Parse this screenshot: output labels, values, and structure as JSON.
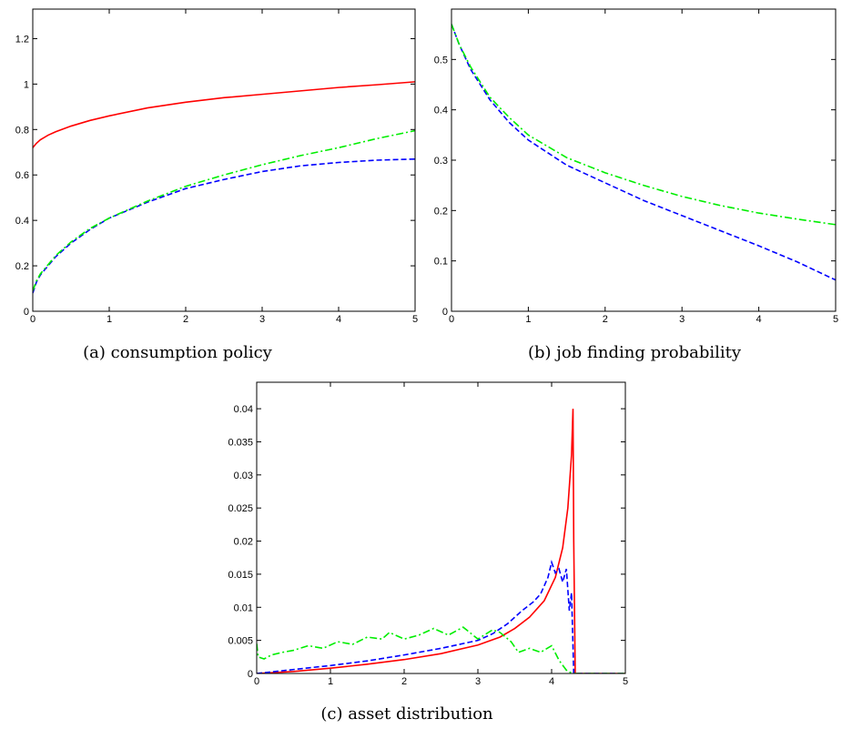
{
  "chart_data": [
    {
      "type": "line",
      "caption": "(a)  consumption policy",
      "xlim": [
        0,
        5
      ],
      "ylim": [
        0,
        1.33
      ],
      "xticks": [
        0,
        1,
        2,
        3,
        4,
        5
      ],
      "yticks": [
        0,
        0.2,
        0.4,
        0.6,
        0.8,
        1,
        1.2
      ],
      "xtick_labels": [
        "0",
        "1",
        "2",
        "3",
        "4",
        "5"
      ],
      "ytick_labels": [
        "0",
        "0.2",
        "0.4",
        "0.6",
        "0.8",
        "1",
        "1.2"
      ],
      "grid": false,
      "series": [
        {
          "color": "#ff0000",
          "style": "solid",
          "x": [
            0,
            0.05,
            0.1,
            0.2,
            0.3,
            0.5,
            0.75,
            1,
            1.5,
            2,
            2.5,
            3,
            3.5,
            4,
            4.5,
            5
          ],
          "y": [
            0.72,
            0.74,
            0.755,
            0.775,
            0.79,
            0.815,
            0.84,
            0.86,
            0.895,
            0.92,
            0.94,
            0.955,
            0.97,
            0.985,
            0.997,
            1.01
          ]
        },
        {
          "color": "#0000ff",
          "style": "dashed",
          "x": [
            0,
            0.05,
            0.1,
            0.2,
            0.3,
            0.5,
            0.75,
            1,
            1.5,
            2,
            2.5,
            3,
            3.5,
            4,
            4.5,
            5
          ],
          "y": [
            0.08,
            0.13,
            0.16,
            0.2,
            0.24,
            0.3,
            0.36,
            0.41,
            0.48,
            0.54,
            0.58,
            0.615,
            0.64,
            0.655,
            0.665,
            0.67
          ]
        },
        {
          "color": "#00ee00",
          "style": "dashdot",
          "x": [
            0,
            0.05,
            0.1,
            0.2,
            0.3,
            0.5,
            0.75,
            1,
            1.5,
            2,
            2.5,
            3,
            3.5,
            4,
            4.5,
            5
          ],
          "y": [
            0.09,
            0.135,
            0.165,
            0.205,
            0.245,
            0.305,
            0.365,
            0.41,
            0.485,
            0.55,
            0.6,
            0.645,
            0.685,
            0.72,
            0.76,
            0.795
          ]
        }
      ]
    },
    {
      "type": "line",
      "caption": "(b)  job finding probability",
      "xlim": [
        0,
        5
      ],
      "ylim": [
        0,
        0.6
      ],
      "xticks": [
        0,
        1,
        2,
        3,
        4,
        5
      ],
      "yticks": [
        0,
        0.1,
        0.2,
        0.3,
        0.4,
        0.5
      ],
      "xtick_labels": [
        "0",
        "1",
        "2",
        "3",
        "4",
        "5"
      ],
      "ytick_labels": [
        "0",
        "0.1",
        "0.2",
        "0.3",
        "0.4",
        "0.5"
      ],
      "grid": false,
      "series": [
        {
          "color": "#0000ff",
          "style": "dashed",
          "x": [
            0,
            0.1,
            0.25,
            0.5,
            0.75,
            1,
            1.5,
            2,
            2.5,
            3,
            3.5,
            4,
            4.5,
            5
          ],
          "y": [
            0.57,
            0.53,
            0.48,
            0.42,
            0.375,
            0.34,
            0.29,
            0.255,
            0.22,
            0.19,
            0.16,
            0.13,
            0.098,
            0.062
          ]
        },
        {
          "color": "#00ee00",
          "style": "dashdot",
          "x": [
            0,
            0.1,
            0.25,
            0.5,
            0.75,
            1,
            1.5,
            2,
            2.5,
            3,
            3.5,
            4,
            4.5,
            5
          ],
          "y": [
            0.57,
            0.53,
            0.485,
            0.425,
            0.385,
            0.35,
            0.305,
            0.275,
            0.25,
            0.228,
            0.21,
            0.195,
            0.183,
            0.172
          ]
        }
      ]
    },
    {
      "type": "line",
      "caption": "(c)  asset distribution",
      "xlim": [
        0,
        5
      ],
      "ylim": [
        0,
        0.044
      ],
      "xticks": [
        0,
        1,
        2,
        3,
        4,
        5
      ],
      "yticks": [
        0,
        0.005,
        0.01,
        0.015,
        0.02,
        0.025,
        0.03,
        0.035,
        0.04
      ],
      "xtick_labels": [
        "0",
        "1",
        "2",
        "3",
        "4",
        "5"
      ],
      "ytick_labels": [
        "0",
        "0.005",
        "0.01",
        "0.015",
        "0.02",
        "0.025",
        "0.03",
        "0.035",
        "0.04"
      ],
      "grid": false,
      "series": [
        {
          "color": "#ff0000",
          "style": "solid",
          "x": [
            0,
            0.5,
            1,
            1.5,
            2,
            2.5,
            3,
            3.3,
            3.5,
            3.7,
            3.9,
            4.05,
            4.15,
            4.22,
            4.27,
            4.29,
            4.3,
            4.32,
            5
          ],
          "y": [
            0,
            0.0003,
            0.0008,
            0.0014,
            0.0021,
            0.003,
            0.0043,
            0.0055,
            0.0068,
            0.0085,
            0.011,
            0.0145,
            0.019,
            0.025,
            0.033,
            0.04,
            0.02,
            0,
            0
          ]
        },
        {
          "color": "#0000ff",
          "style": "dashed",
          "x": [
            0,
            0.5,
            1,
            1.5,
            2,
            2.5,
            3,
            3.2,
            3.4,
            3.6,
            3.75,
            3.85,
            3.95,
            4.0,
            4.05,
            4.1,
            4.15,
            4.2,
            4.24,
            4.27,
            4.3,
            5
          ],
          "y": [
            0,
            0.0006,
            0.0012,
            0.0019,
            0.0028,
            0.0038,
            0.005,
            0.006,
            0.0075,
            0.0095,
            0.0108,
            0.012,
            0.0145,
            0.0168,
            0.0152,
            0.0158,
            0.0138,
            0.0158,
            0.0095,
            0.0122,
            0,
            0
          ]
        },
        {
          "color": "#00ee00",
          "style": "dashdot",
          "x": [
            0,
            0.02,
            0.1,
            0.2,
            0.35,
            0.5,
            0.7,
            0.9,
            1.1,
            1.3,
            1.5,
            1.7,
            1.8,
            2.0,
            2.2,
            2.4,
            2.6,
            2.8,
            3.0,
            3.2,
            3.3,
            3.45,
            3.55,
            3.7,
            3.85,
            4.0,
            4.1,
            4.2,
            4.28,
            4.3,
            5
          ],
          "y": [
            0.0045,
            0.0025,
            0.0022,
            0.0028,
            0.0032,
            0.0035,
            0.0042,
            0.0038,
            0.0048,
            0.0044,
            0.0055,
            0.0052,
            0.0062,
            0.0052,
            0.0058,
            0.0068,
            0.0058,
            0.007,
            0.0052,
            0.0066,
            0.0062,
            0.0048,
            0.0032,
            0.0038,
            0.0032,
            0.0042,
            0.002,
            0.0005,
            0,
            0,
            0
          ]
        }
      ]
    }
  ]
}
